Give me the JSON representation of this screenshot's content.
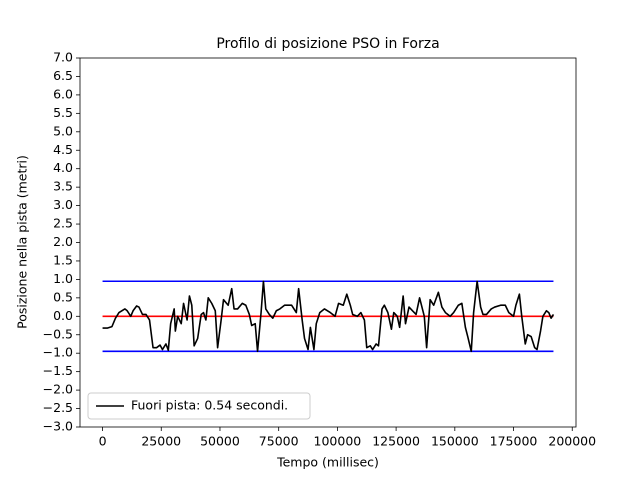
{
  "chart_data": {
    "type": "line",
    "title": "Profilo di posizione PSO in Forza",
    "x_label": "Tempo (millisec)",
    "y_label": "Posizione nella pista (metri)",
    "xlim": [
      -9600,
      201600
    ],
    "ylim": [
      -3,
      7
    ],
    "xticks": [
      0,
      25000,
      50000,
      75000,
      100000,
      125000,
      150000,
      175000,
      200000
    ],
    "yticks": [
      {
        "value": -3,
        "label": "−3.0"
      },
      {
        "value": -2.5,
        "label": "−2.5"
      },
      {
        "value": -2,
        "label": "−2.0"
      },
      {
        "value": -1.5,
        "label": "−1.5"
      },
      {
        "value": -1,
        "label": "−1.0"
      },
      {
        "value": -0.5,
        "label": "−0.5"
      },
      {
        "value": 0,
        "label": "0.0"
      },
      {
        "value": 0.5,
        "label": "0.5"
      },
      {
        "value": 1,
        "label": "1.0"
      },
      {
        "value": 1.5,
        "label": "1.5"
      },
      {
        "value": 2,
        "label": "2.0"
      },
      {
        "value": 2.5,
        "label": "2.5"
      },
      {
        "value": 3,
        "label": "3.0"
      },
      {
        "value": 3.5,
        "label": "3.5"
      },
      {
        "value": 4,
        "label": "4.0"
      },
      {
        "value": 4.5,
        "label": "4.5"
      },
      {
        "value": 5,
        "label": "5.0"
      },
      {
        "value": 5.5,
        "label": "5.5"
      },
      {
        "value": 6,
        "label": "6.0"
      },
      {
        "value": 6.5,
        "label": "6.5"
      },
      {
        "value": 7,
        "label": "7.0"
      }
    ],
    "legend": "lower left",
    "series": [
      {
        "color": "#0000ff",
        "x": [
          0,
          192000
        ],
        "values": [
          0.95,
          0.95
        ]
      },
      {
        "color": "#0000ff",
        "x": [
          0,
          192000
        ],
        "values": [
          -0.95,
          -0.95
        ]
      },
      {
        "color": "#ff0000",
        "x": [
          0,
          192000
        ],
        "values": [
          0,
          0
        ]
      },
      {
        "name": "Fuori pista: 0.54 secondi.",
        "color": "#000000",
        "x": [
          0,
          2000,
          4000,
          5500,
          7000,
          9500,
          10500,
          12000,
          13000,
          14500,
          15500,
          17000,
          18500,
          20000,
          21500,
          23000,
          24500,
          25500,
          27000,
          28000,
          29000,
          30500,
          31000,
          32000,
          33500,
          34500,
          36000,
          37000,
          38000,
          39000,
          40500,
          42000,
          43000,
          44000,
          45000,
          46500,
          48000,
          49000,
          50500,
          51500,
          53500,
          55000,
          56000,
          57500,
          59500,
          61000,
          62500,
          63500,
          65000,
          66000,
          67500,
          68500,
          69500,
          71000,
          72500,
          74000,
          75500,
          77500,
          80500,
          82500,
          83500,
          85000,
          86000,
          87500,
          88500,
          90000,
          91000,
          92500,
          94500,
          97000,
          99000,
          100500,
          102500,
          104000,
          105500,
          106500,
          108500,
          110000,
          111500,
          112500,
          114000,
          115000,
          116500,
          117500,
          119000,
          120000,
          121500,
          123000,
          124000,
          125500,
          126500,
          128000,
          129000,
          130500,
          132000,
          133500,
          135000,
          137000,
          138000,
          139500,
          141000,
          143000,
          144500,
          146000,
          148000,
          149500,
          151500,
          153000,
          154500,
          155500,
          157000,
          158000,
          159500,
          161000,
          162000,
          163500,
          165500,
          167000,
          169500,
          171500,
          173000,
          175000,
          176000,
          177500,
          178500,
          180000,
          181000,
          182500,
          184000,
          185000,
          186500,
          187500,
          189000,
          190000,
          191000,
          192000
        ],
        "values": [
          -0.32,
          -0.32,
          -0.28,
          -0.05,
          0.1,
          0.2,
          0.15,
          0.0,
          0.15,
          0.28,
          0.25,
          0.05,
          0.05,
          -0.1,
          -0.85,
          -0.85,
          -0.78,
          -0.9,
          -0.75,
          -0.92,
          -0.2,
          0.2,
          -0.4,
          0.0,
          -0.2,
          0.35,
          -0.1,
          0.55,
          0.3,
          -0.8,
          -0.6,
          0.05,
          0.1,
          -0.1,
          0.5,
          0.35,
          0.15,
          -0.85,
          -0.1,
          0.45,
          0.3,
          0.75,
          0.2,
          0.2,
          0.35,
          0.3,
          0.05,
          -0.25,
          -0.2,
          -0.95,
          0.1,
          0.95,
          0.2,
          0.05,
          -0.05,
          0.15,
          0.2,
          0.3,
          0.3,
          0.1,
          0.75,
          -0.1,
          -0.6,
          -0.9,
          -0.3,
          -0.9,
          -0.2,
          0.1,
          0.2,
          0.1,
          0.0,
          0.35,
          0.3,
          0.6,
          0.3,
          0.05,
          0.0,
          0.1,
          -0.1,
          -0.85,
          -0.8,
          -0.9,
          -0.75,
          -0.8,
          0.2,
          0.3,
          0.1,
          -0.35,
          0.1,
          0.0,
          -0.3,
          0.55,
          -0.2,
          0.25,
          0.15,
          0.05,
          0.5,
          0.0,
          -0.85,
          0.45,
          0.3,
          0.65,
          0.25,
          0.1,
          0.0,
          0.1,
          0.3,
          0.35,
          -0.3,
          -0.55,
          -0.95,
          0.1,
          0.95,
          0.25,
          0.05,
          0.05,
          0.2,
          0.25,
          0.3,
          0.3,
          0.1,
          0.0,
          0.3,
          0.6,
          0.0,
          -0.75,
          -0.5,
          -0.55,
          -0.85,
          -0.9,
          -0.4,
          0.0,
          0.15,
          0.1,
          -0.05,
          0.05
        ]
      }
    ]
  }
}
